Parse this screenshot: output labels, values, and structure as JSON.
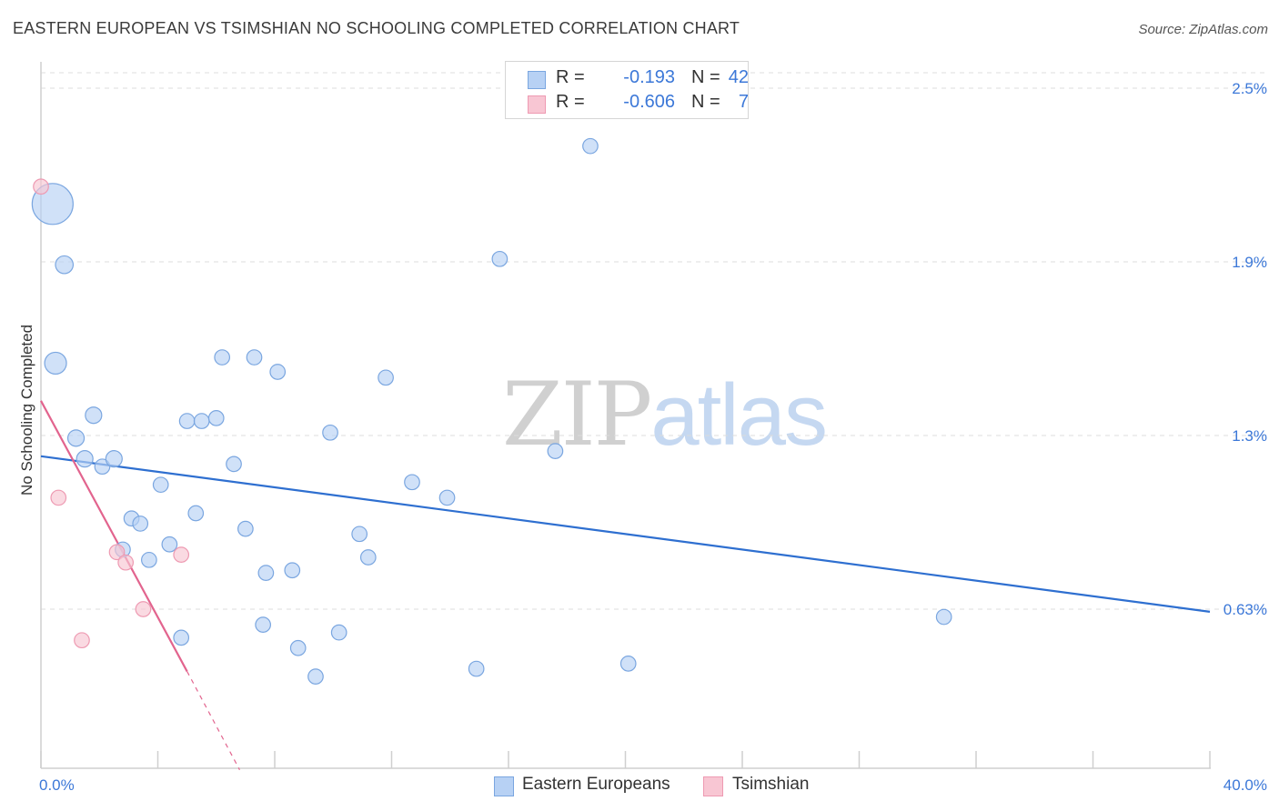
{
  "title": "EASTERN EUROPEAN VS TSIMSHIAN NO SCHOOLING COMPLETED CORRELATION CHART",
  "source": "Source: ZipAtlas.com",
  "watermark": {
    "part1": "ZIP",
    "part2": "atlas"
  },
  "colors": {
    "blue_fill": "#b7d1f4",
    "blue_stroke": "#7aa6e0",
    "blue_line": "#2e6fd0",
    "pink_fill": "#f8c6d3",
    "pink_stroke": "#ee9ab2",
    "pink_line": "#e2648e",
    "axis_text": "#3c78d8",
    "grid": "#dcdcdc"
  },
  "legend_top": [
    {
      "r_label": "R =",
      "r_value": "-0.193",
      "n_label": "N =",
      "n_value": "42"
    },
    {
      "r_label": "R =",
      "r_value": "-0.606",
      "n_label": "N =",
      "n_value": "7"
    }
  ],
  "legend_bottom": [
    "Eastern Europeans",
    "Tsimshian"
  ],
  "chart_data": {
    "type": "scatter",
    "title": "EASTERN EUROPEAN VS TSIMSHIAN NO SCHOOLING COMPLETED CORRELATION CHART",
    "xlabel": "",
    "ylabel": "No Schooling Completed",
    "xlim": [
      0,
      40
    ],
    "ylim": [
      0.0,
      2.55
    ],
    "x_tick_labels": [
      "0.0%",
      "40.0%"
    ],
    "y_ticks": [
      {
        "value": 2.5,
        "label": "2.5%"
      },
      {
        "value": 1.9,
        "label": "1.9%"
      },
      {
        "value": 1.3,
        "label": "1.3%"
      },
      {
        "value": 0.63,
        "label": "0.63%"
      }
    ],
    "series": [
      {
        "name": "Eastern Europeans",
        "color": "blue",
        "r": -0.193,
        "n": 42,
        "points": [
          [
            0.4,
            2.1,
            3
          ],
          [
            0.8,
            1.89,
            1.3
          ],
          [
            0.5,
            1.55,
            1.6
          ],
          [
            1.8,
            1.37,
            1.2
          ],
          [
            1.2,
            1.29,
            1.2
          ],
          [
            1.5,
            1.21,
            1.2
          ],
          [
            2.1,
            1.18,
            1.1
          ],
          [
            2.5,
            1.21,
            1.2
          ],
          [
            4.1,
            1.11,
            1.1
          ],
          [
            3.1,
            0.98,
            1.1
          ],
          [
            3.4,
            0.96,
            1.1
          ],
          [
            2.8,
            0.86,
            1.1
          ],
          [
            3.7,
            0.82,
            1.1
          ],
          [
            4.4,
            0.88,
            1.1
          ],
          [
            5.3,
            1.0,
            1.1
          ],
          [
            4.8,
            0.52,
            1.1
          ],
          [
            6.2,
            1.57,
            1.1
          ],
          [
            7.3,
            1.57,
            1.1
          ],
          [
            8.1,
            1.52,
            1.1
          ],
          [
            5.0,
            1.35,
            1.1
          ],
          [
            5.5,
            1.35,
            1.1
          ],
          [
            6.0,
            1.36,
            1.1
          ],
          [
            6.6,
            1.19,
            1.1
          ],
          [
            7.0,
            0.94,
            1.1
          ],
          [
            7.7,
            0.77,
            1.1
          ],
          [
            8.6,
            0.78,
            1.1
          ],
          [
            7.6,
            0.57,
            1.1
          ],
          [
            8.8,
            0.48,
            1.1
          ],
          [
            9.4,
            0.37,
            1.1
          ],
          [
            9.9,
            1.31,
            1.1
          ],
          [
            10.2,
            0.54,
            1.1
          ],
          [
            10.9,
            0.92,
            1.1
          ],
          [
            11.2,
            0.83,
            1.1
          ],
          [
            11.8,
            1.5,
            1.1
          ],
          [
            12.7,
            1.12,
            1.1
          ],
          [
            13.9,
            1.06,
            1.1
          ],
          [
            14.9,
            0.4,
            1.1
          ],
          [
            15.7,
            1.91,
            1.1
          ],
          [
            17.6,
            1.24,
            1.1
          ],
          [
            18.8,
            2.3,
            1.1
          ],
          [
            20.1,
            0.42,
            1.1
          ],
          [
            30.9,
            0.6,
            1.1
          ]
        ],
        "trend": {
          "x0": 0.0,
          "y0": 1.22,
          "x1": 40.0,
          "y1": 0.62
        }
      },
      {
        "name": "Tsimshian",
        "color": "pink",
        "r": -0.606,
        "n": 7,
        "points": [
          [
            0.0,
            2.16,
            1.1
          ],
          [
            0.6,
            1.06,
            1.1
          ],
          [
            2.6,
            0.85,
            1.1
          ],
          [
            2.9,
            0.81,
            1.1
          ],
          [
            4.8,
            0.84,
            1.1
          ],
          [
            3.5,
            0.63,
            1.1
          ],
          [
            1.4,
            0.51,
            1.1
          ]
        ],
        "trend": {
          "x0": 0.0,
          "y0": 1.42,
          "x1": 5.0,
          "y1": 0.39,
          "dash_x1": 6.8,
          "dash_y1": 0.01
        }
      }
    ]
  }
}
